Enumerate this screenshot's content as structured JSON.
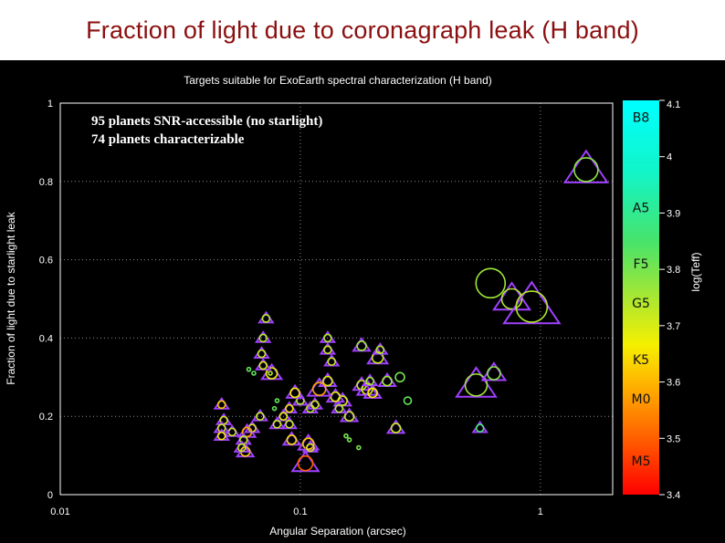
{
  "slide": {
    "title": "Fraction of light due to coronagraph leak (H band)"
  },
  "chart_data": {
    "type": "scatter",
    "title": "Targets suitable for ExoEarth spectral characterization (H band)",
    "xlabel": "Angular Separation (arcsec)",
    "ylabel": "Fraction of light due to starlight leak",
    "xscale": "log",
    "xlim": [
      0.01,
      2
    ],
    "ylim": [
      0,
      1
    ],
    "x_ticks": [
      "0.01",
      "0.1",
      "1"
    ],
    "x_tick_values": [
      0.01,
      0.1,
      1
    ],
    "y_ticks": [
      "0",
      "0.2",
      "0.4",
      "0.6",
      "0.8",
      "1"
    ],
    "y_tick_values": [
      0,
      0.2,
      0.4,
      0.6,
      0.8,
      1
    ],
    "grid": true,
    "annotations": [
      "95  planets SNR-accessible (no starlight)",
      "74 planets characterizable"
    ],
    "colorbar": {
      "label": "log(Teff)",
      "range": [
        3.4,
        4.1
      ],
      "ticks": [
        "4.1",
        "4",
        "3.9",
        "3.8",
        "3.7",
        "3.6",
        "3.5",
        "3.4"
      ],
      "tick_values": [
        4.1,
        4.0,
        3.9,
        3.8,
        3.7,
        3.6,
        3.5,
        3.4
      ],
      "spectral_classes": [
        {
          "label": "B8",
          "logTeff": 4.07
        },
        {
          "label": "A5",
          "logTeff": 3.91
        },
        {
          "label": "F5",
          "logTeff": 3.81
        },
        {
          "label": "G5",
          "logTeff": 3.74
        },
        {
          "label": "K5",
          "logTeff": 3.64
        },
        {
          "label": "M0",
          "logTeff": 3.57
        },
        {
          "label": "M5",
          "logTeff": 3.46
        }
      ]
    },
    "marker_legend": {
      "circle": "planets SNR-accessible (no starlight)",
      "triangle": "planets characterizable"
    },
    "points": [
      {
        "x": 1.55,
        "y": 0.83,
        "size": 13,
        "logTeff": 3.78,
        "tri": true
      },
      {
        "x": 0.62,
        "y": 0.54,
        "size": 16,
        "logTeff": 3.76,
        "tri": false
      },
      {
        "x": 0.76,
        "y": 0.5,
        "size": 11,
        "logTeff": 3.74,
        "tri": true
      },
      {
        "x": 0.92,
        "y": 0.48,
        "size": 17,
        "logTeff": 3.74,
        "tri": true
      },
      {
        "x": 0.54,
        "y": 0.28,
        "size": 12,
        "logTeff": 3.76,
        "tri": true
      },
      {
        "x": 0.64,
        "y": 0.31,
        "size": 7,
        "logTeff": 3.78,
        "tri": true
      },
      {
        "x": 0.56,
        "y": 0.17,
        "size": 4,
        "logTeff": 3.86,
        "tri": true
      },
      {
        "x": 0.26,
        "y": 0.3,
        "size": 5,
        "logTeff": 3.8,
        "tri": false
      },
      {
        "x": 0.28,
        "y": 0.24,
        "size": 4,
        "logTeff": 3.82,
        "tri": false
      },
      {
        "x": 0.25,
        "y": 0.17,
        "size": 5,
        "logTeff": 3.72,
        "tri": true
      },
      {
        "x": 0.23,
        "y": 0.29,
        "size": 5,
        "logTeff": 3.76,
        "tri": true
      },
      {
        "x": 0.21,
        "y": 0.35,
        "size": 6,
        "logTeff": 3.72,
        "tri": true
      },
      {
        "x": 0.215,
        "y": 0.37,
        "size": 4,
        "logTeff": 3.74,
        "tri": true
      },
      {
        "x": 0.18,
        "y": 0.38,
        "size": 5,
        "logTeff": 3.76,
        "tri": true
      },
      {
        "x": 0.18,
        "y": 0.28,
        "size": 5,
        "logTeff": 3.72,
        "tri": true
      },
      {
        "x": 0.19,
        "y": 0.27,
        "size": 6,
        "logTeff": 3.7,
        "tri": true
      },
      {
        "x": 0.2,
        "y": 0.26,
        "size": 5,
        "logTeff": 3.66,
        "tri": true
      },
      {
        "x": 0.195,
        "y": 0.29,
        "size": 4,
        "logTeff": 3.76,
        "tri": true
      },
      {
        "x": 0.16,
        "y": 0.2,
        "size": 5,
        "logTeff": 3.72,
        "tri": true
      },
      {
        "x": 0.15,
        "y": 0.24,
        "size": 5,
        "logTeff": 3.7,
        "tri": true
      },
      {
        "x": 0.145,
        "y": 0.22,
        "size": 4,
        "logTeff": 3.74,
        "tri": true
      },
      {
        "x": 0.13,
        "y": 0.29,
        "size": 5,
        "logTeff": 3.7,
        "tri": true
      },
      {
        "x": 0.13,
        "y": 0.37,
        "size": 4,
        "logTeff": 3.72,
        "tri": true
      },
      {
        "x": 0.13,
        "y": 0.4,
        "size": 4,
        "logTeff": 3.74,
        "tri": true
      },
      {
        "x": 0.135,
        "y": 0.34,
        "size": 4,
        "logTeff": 3.72,
        "tri": true
      },
      {
        "x": 0.14,
        "y": 0.25,
        "size": 5,
        "logTeff": 3.68,
        "tri": true
      },
      {
        "x": 0.12,
        "y": 0.27,
        "size": 7,
        "logTeff": 3.58,
        "tri": true
      },
      {
        "x": 0.11,
        "y": 0.22,
        "size": 4,
        "logTeff": 3.74,
        "tri": true
      },
      {
        "x": 0.115,
        "y": 0.23,
        "size": 4,
        "logTeff": 3.72,
        "tri": true
      },
      {
        "x": 0.1,
        "y": 0.24,
        "size": 4,
        "logTeff": 3.74,
        "tri": true
      },
      {
        "x": 0.095,
        "y": 0.26,
        "size": 5,
        "logTeff": 3.66,
        "tri": true
      },
      {
        "x": 0.09,
        "y": 0.22,
        "size": 4,
        "logTeff": 3.66,
        "tri": true
      },
      {
        "x": 0.085,
        "y": 0.2,
        "size": 4,
        "logTeff": 3.68,
        "tri": true
      },
      {
        "x": 0.09,
        "y": 0.18,
        "size": 4,
        "logTeff": 3.72,
        "tri": true
      },
      {
        "x": 0.092,
        "y": 0.14,
        "size": 5,
        "logTeff": 3.64,
        "tri": true
      },
      {
        "x": 0.108,
        "y": 0.13,
        "size": 6,
        "logTeff": 3.62,
        "tri": true
      },
      {
        "x": 0.11,
        "y": 0.12,
        "size": 4,
        "logTeff": 3.7,
        "tri": true
      },
      {
        "x": 0.105,
        "y": 0.08,
        "size": 8,
        "logTeff": 3.5,
        "tri": true
      },
      {
        "x": 0.08,
        "y": 0.18,
        "size": 4,
        "logTeff": 3.72,
        "tri": true
      },
      {
        "x": 0.076,
        "y": 0.31,
        "size": 6,
        "logTeff": 3.68,
        "tri": true
      },
      {
        "x": 0.072,
        "y": 0.45,
        "size": 4,
        "logTeff": 3.74,
        "tri": true
      },
      {
        "x": 0.07,
        "y": 0.4,
        "size": 4,
        "logTeff": 3.74,
        "tri": true
      },
      {
        "x": 0.069,
        "y": 0.36,
        "size": 4,
        "logTeff": 3.72,
        "tri": true
      },
      {
        "x": 0.07,
        "y": 0.33,
        "size": 4,
        "logTeff": 3.7,
        "tri": true
      },
      {
        "x": 0.068,
        "y": 0.2,
        "size": 4,
        "logTeff": 3.72,
        "tri": true
      },
      {
        "x": 0.063,
        "y": 0.17,
        "size": 4,
        "logTeff": 3.7,
        "tri": true
      },
      {
        "x": 0.06,
        "y": 0.16,
        "size": 5,
        "logTeff": 3.58,
        "tri": true
      },
      {
        "x": 0.058,
        "y": 0.14,
        "size": 4,
        "logTeff": 3.72,
        "tri": true
      },
      {
        "x": 0.059,
        "y": 0.11,
        "size": 5,
        "logTeff": 3.62,
        "tri": true
      },
      {
        "x": 0.057,
        "y": 0.12,
        "size": 4,
        "logTeff": 3.72,
        "tri": true
      },
      {
        "x": 0.052,
        "y": 0.16,
        "size": 4,
        "logTeff": 3.72,
        "tri": true
      },
      {
        "x": 0.047,
        "y": 0.23,
        "size": 4,
        "logTeff": 3.62,
        "tri": true
      },
      {
        "x": 0.048,
        "y": 0.19,
        "size": 4,
        "logTeff": 3.7,
        "tri": true
      },
      {
        "x": 0.047,
        "y": 0.17,
        "size": 4,
        "logTeff": 3.72,
        "tri": true
      },
      {
        "x": 0.047,
        "y": 0.15,
        "size": 4,
        "logTeff": 3.66,
        "tri": true
      },
      {
        "x": 0.075,
        "y": 0.31,
        "size": 2,
        "logTeff": 3.74,
        "tri": false
      },
      {
        "x": 0.064,
        "y": 0.31,
        "size": 2,
        "logTeff": 3.82,
        "tri": false
      },
      {
        "x": 0.061,
        "y": 0.32,
        "size": 2,
        "logTeff": 3.82,
        "tri": false
      },
      {
        "x": 0.08,
        "y": 0.24,
        "size": 2,
        "logTeff": 3.82,
        "tri": false
      },
      {
        "x": 0.078,
        "y": 0.22,
        "size": 2,
        "logTeff": 3.82,
        "tri": false
      },
      {
        "x": 0.155,
        "y": 0.15,
        "size": 2,
        "logTeff": 3.8,
        "tri": false
      },
      {
        "x": 0.16,
        "y": 0.14,
        "size": 2,
        "logTeff": 3.8,
        "tri": false
      },
      {
        "x": 0.175,
        "y": 0.12,
        "size": 2,
        "logTeff": 3.8,
        "tri": false
      }
    ]
  }
}
